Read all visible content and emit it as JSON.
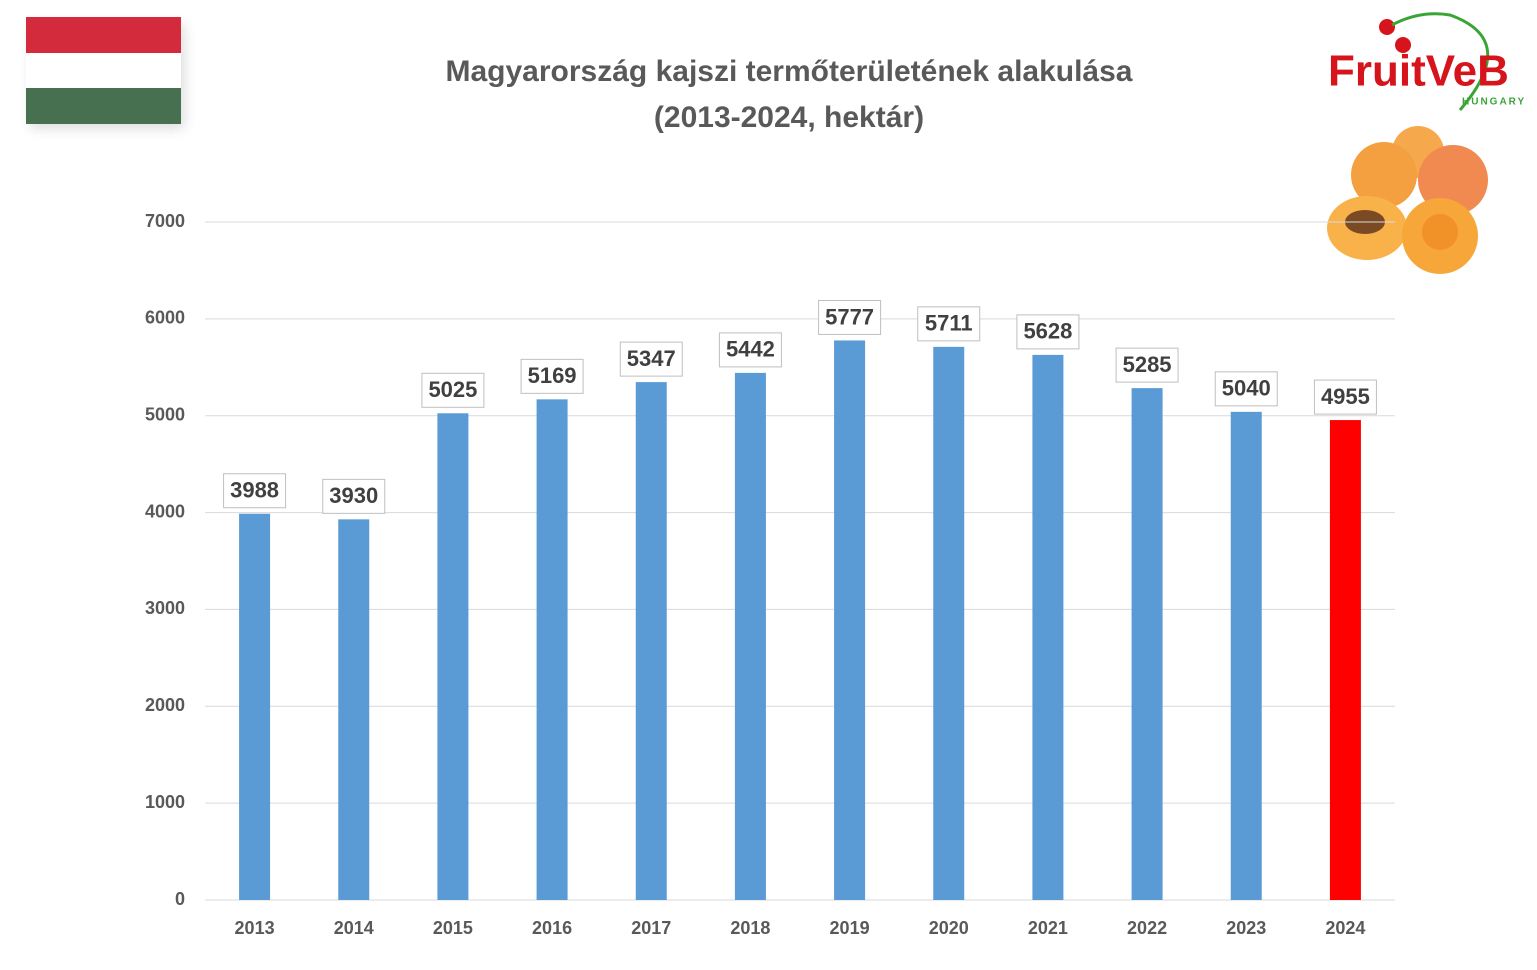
{
  "logo": {
    "name": "FruitVeB",
    "country": "HUNGARY"
  },
  "chart_data": {
    "type": "bar",
    "title": "Magyarország kajszi termőterületének alakulása",
    "subtitle": "(2013-2024, hektár)",
    "categories": [
      "2013",
      "2014",
      "2015",
      "2016",
      "2017",
      "2018",
      "2019",
      "2020",
      "2021",
      "2022",
      "2023",
      "2024"
    ],
    "values": [
      3988,
      3930,
      5025,
      5169,
      5347,
      5442,
      5777,
      5711,
      5628,
      5285,
      5040,
      4955
    ],
    "colors": [
      "#5b9bd5",
      "#5b9bd5",
      "#5b9bd5",
      "#5b9bd5",
      "#5b9bd5",
      "#5b9bd5",
      "#5b9bd5",
      "#5b9bd5",
      "#5b9bd5",
      "#5b9bd5",
      "#5b9bd5",
      "#ff0000"
    ],
    "ylim": [
      0,
      7000
    ],
    "yticks": [
      0,
      1000,
      2000,
      3000,
      4000,
      5000,
      6000,
      7000
    ],
    "grid": true
  }
}
